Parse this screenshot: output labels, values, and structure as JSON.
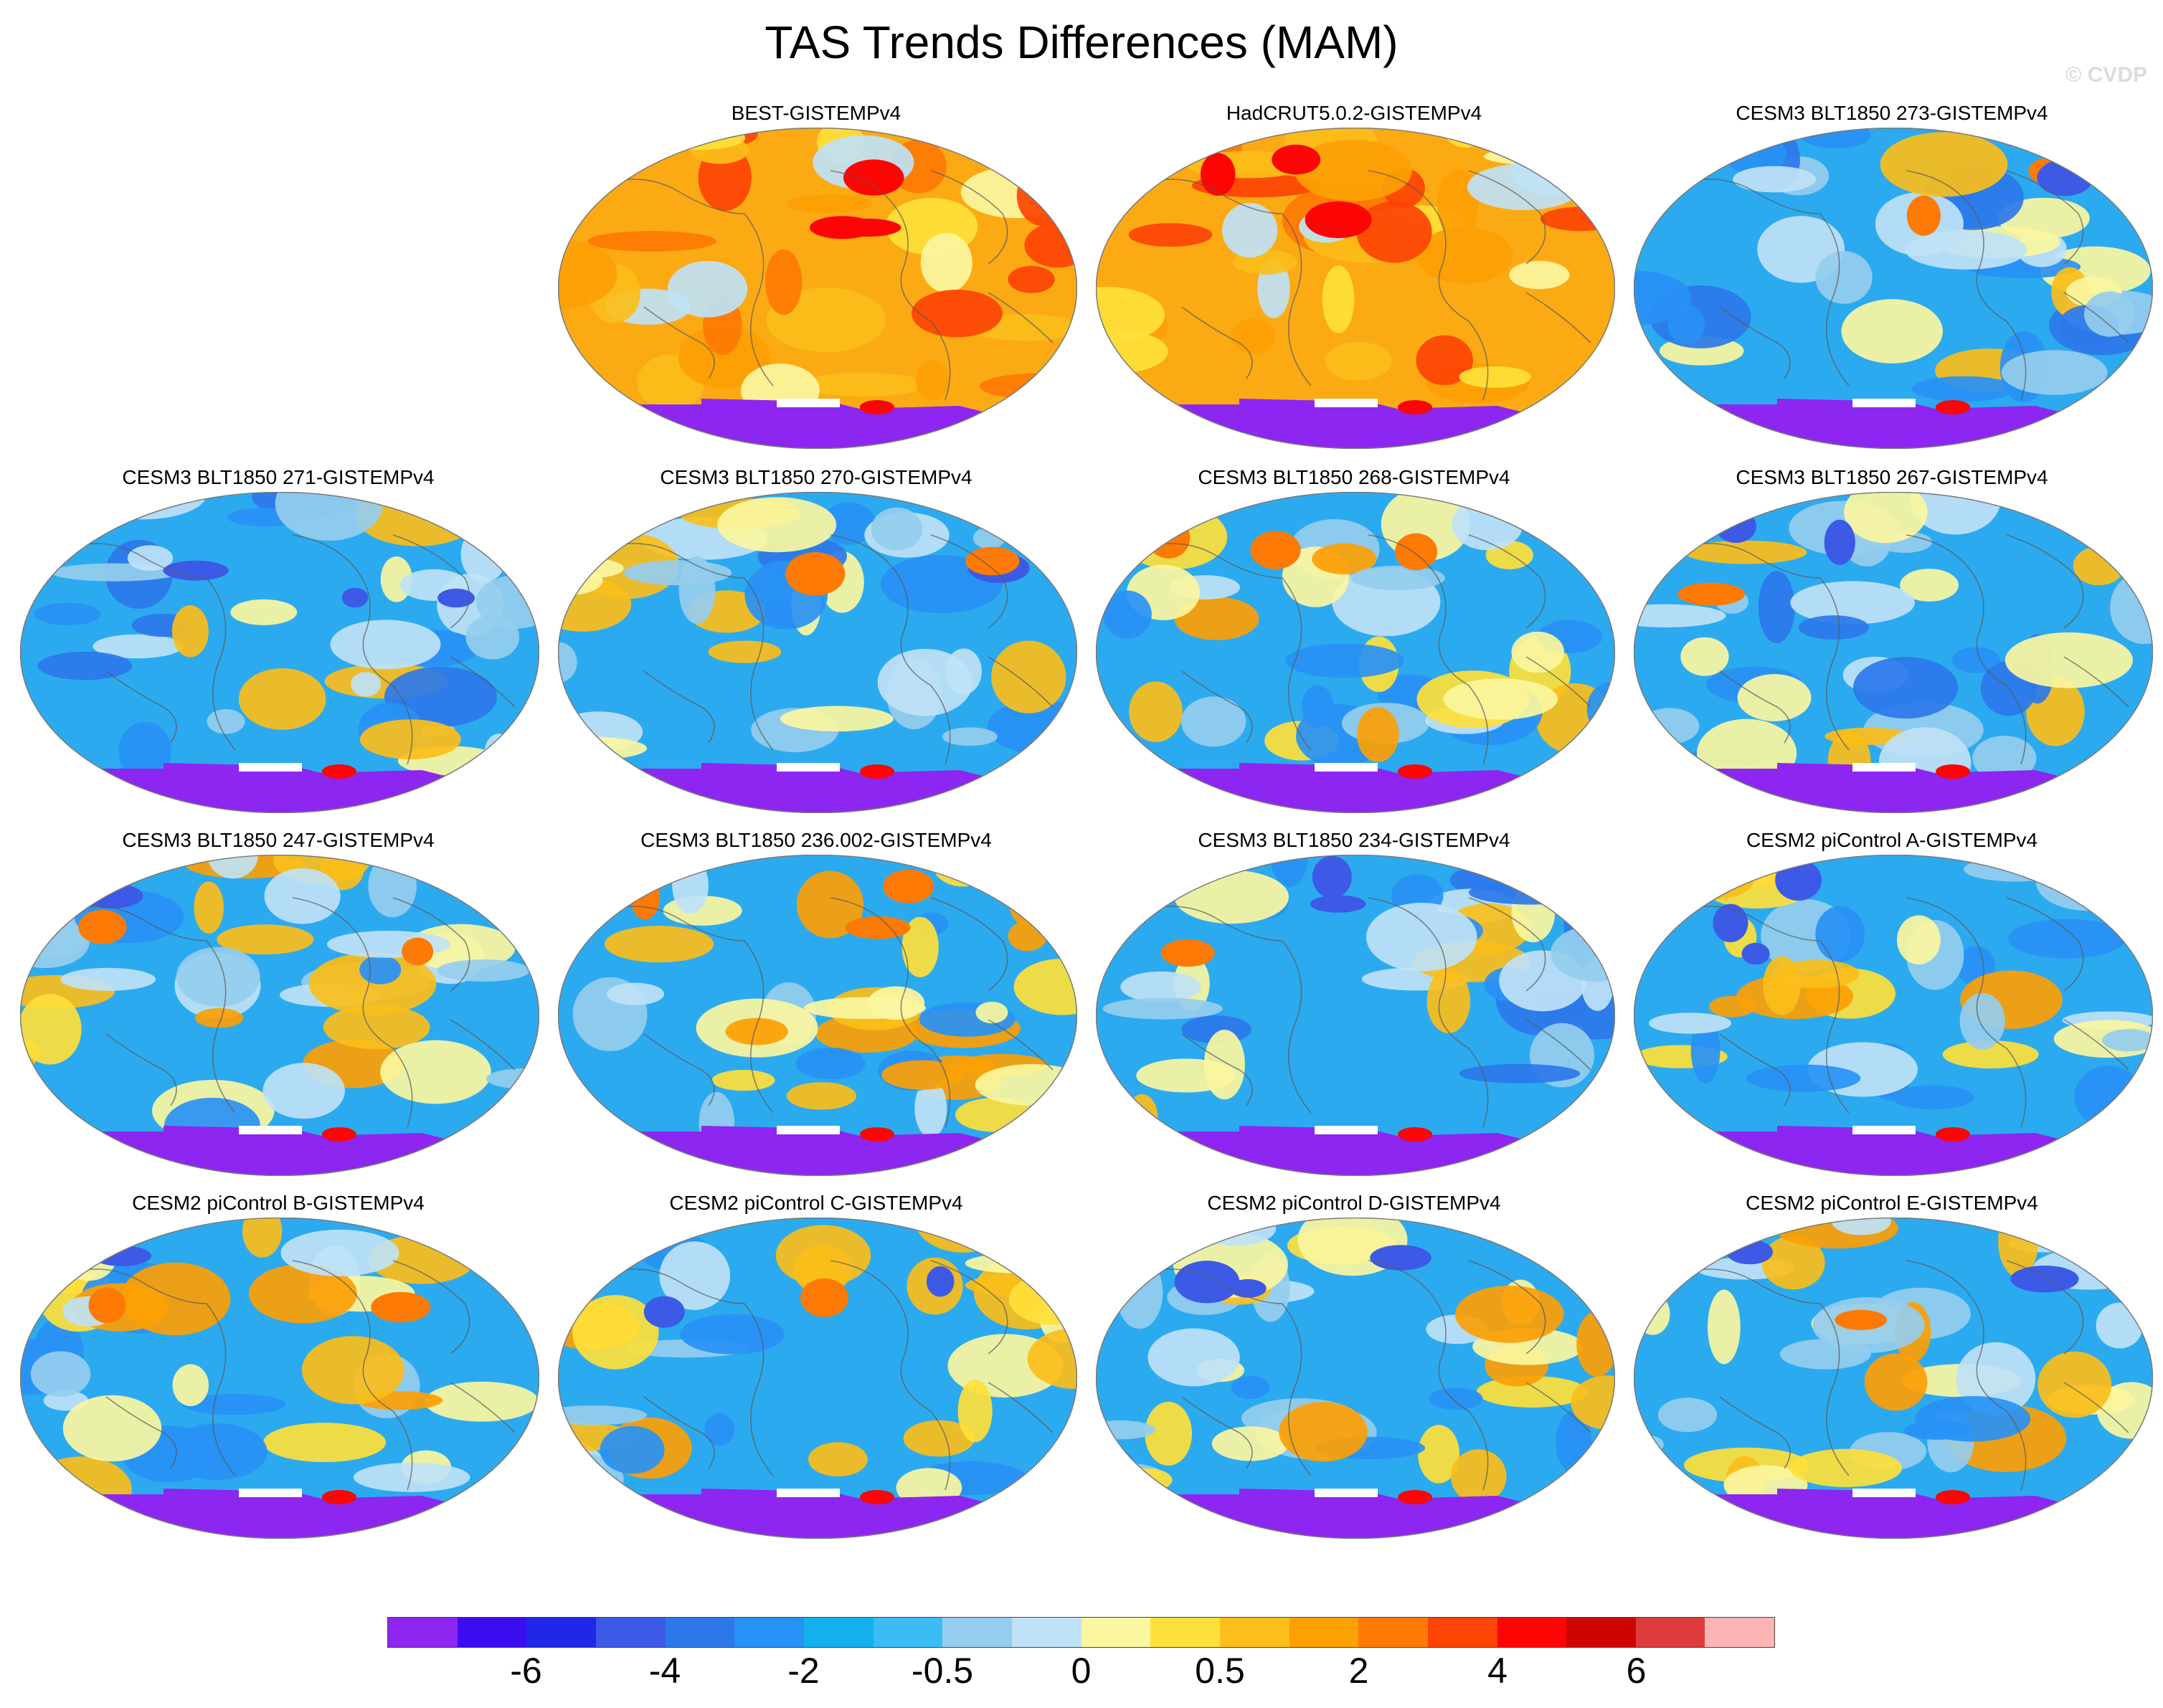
{
  "title": "TAS Trends Differences (MAM)",
  "copyright": "© CVDP",
  "panels": [
    {
      "title": "BEST-GISTEMPv4",
      "style": "warm"
    },
    {
      "title": "HadCRUT5.0.2-GISTEMPv4",
      "style": "warm"
    },
    {
      "title": "CESM3 BLT1850 273-GISTEMPv4",
      "style": "cool"
    },
    {
      "title": "CESM3 BLT1850 271-GISTEMPv4",
      "style": "cool"
    },
    {
      "title": "CESM3 BLT1850 270-GISTEMPv4",
      "style": "cool"
    },
    {
      "title": "CESM3 BLT1850 268-GISTEMPv4",
      "style": "mixed"
    },
    {
      "title": "CESM3 BLT1850 267-GISTEMPv4",
      "style": "cool"
    },
    {
      "title": "CESM3 BLT1850 247-GISTEMPv4",
      "style": "mixed"
    },
    {
      "title": "CESM3 BLT1850 236.002-GISTEMPv4",
      "style": "mixed"
    },
    {
      "title": "CESM3 BLT1850 234-GISTEMPv4",
      "style": "cool"
    },
    {
      "title": "CESM2 piControl A-GISTEMPv4",
      "style": "mixed"
    },
    {
      "title": "CESM2 piControl B-GISTEMPv4",
      "style": "mixed"
    },
    {
      "title": "CESM2 piControl C-GISTEMPv4",
      "style": "mixed"
    },
    {
      "title": "CESM2 piControl D-GISTEMPv4",
      "style": "mixed"
    },
    {
      "title": "CESM2 piControl E-GISTEMPv4",
      "style": "mixed"
    }
  ],
  "colorbar": {
    "colors": [
      "#8c26f0",
      "#3c0cf0",
      "#1e28e6",
      "#3c5ae6",
      "#2c78ea",
      "#2891f5",
      "#14afef",
      "#3cbcf5",
      "#95cdee",
      "#bfe2f6",
      "#fbf6a0",
      "#ffe03a",
      "#fbbe1a",
      "#fca004",
      "#fd7a04",
      "#fc4404",
      "#fb0604",
      "#cd0402",
      "#dc3c3c",
      "#fdb4b4"
    ],
    "tick_labels": [
      "-6",
      "-4",
      "-2",
      "-0.5",
      "0",
      "0.5",
      "2",
      "4",
      "6"
    ]
  },
  "colors": {
    "ocean_cool": "#2caaef",
    "ocean_warm": "#fbaa14",
    "antarctica": "#8c26f0",
    "coastline": "#5a5a5a"
  }
}
